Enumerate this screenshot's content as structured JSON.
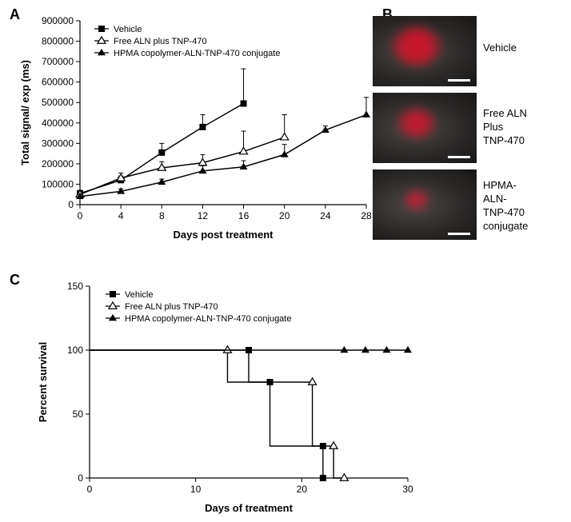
{
  "panelA": {
    "label": "A",
    "chart": {
      "type": "line",
      "xlabel": "Days post treatment",
      "ylabel": "Total signal/ exp (ms)",
      "label_fontsize": 13,
      "label_fontweight": "bold",
      "tick_fontsize": 12,
      "xlim": [
        0,
        28
      ],
      "ylim": [
        0,
        900000
      ],
      "xtick_step": 4,
      "ytick_step": 100000,
      "background_color": "#ffffff",
      "axis_color": "#000000",
      "series": [
        {
          "name": "Vehicle",
          "marker": "square-filled",
          "color": "#000000",
          "line_width": 1.5,
          "x": [
            0,
            4,
            8,
            12,
            16
          ],
          "y": [
            55000,
            120000,
            255000,
            380000,
            495000
          ],
          "err": [
            15000,
            20000,
            45000,
            60000,
            170000
          ]
        },
        {
          "name": "Free ALN plus TNP-470",
          "marker": "triangle-open",
          "color": "#000000",
          "line_width": 1.5,
          "x": [
            0,
            4,
            8,
            12,
            16,
            20
          ],
          "y": [
            50000,
            130000,
            180000,
            205000,
            260000,
            330000
          ],
          "err": [
            12000,
            25000,
            30000,
            40000,
            100000,
            110000
          ]
        },
        {
          "name": "HPMA copolymer-ALN-TNP-470 conjugate",
          "marker": "triangle-filled",
          "color": "#000000",
          "line_width": 1.5,
          "x": [
            0,
            4,
            8,
            12,
            16,
            20,
            24,
            28
          ],
          "y": [
            40000,
            65000,
            110000,
            165000,
            185000,
            245000,
            365000,
            440000
          ],
          "err": [
            10000,
            12000,
            15000,
            25000,
            30000,
            50000,
            20000,
            85000
          ]
        }
      ],
      "legend_position": "top-left"
    }
  },
  "panelB": {
    "label": "B",
    "images": [
      {
        "label_lines": [
          "Vehicle"
        ],
        "blob_w": 62,
        "blob_h": 48,
        "blob_color": "#d4132a",
        "scale_w": 28
      },
      {
        "label_lines": [
          "Free ALN",
          "Plus",
          "TNP-470"
        ],
        "blob_w": 48,
        "blob_h": 36,
        "blob_color": "#c81830",
        "scale_w": 28
      },
      {
        "label_lines": [
          "HPMA-",
          "ALN-",
          "TNP-470",
          "conjugate"
        ],
        "blob_w": 32,
        "blob_h": 24,
        "blob_color": "#c02038",
        "scale_w": 28
      }
    ]
  },
  "panelC": {
    "label": "C",
    "chart": {
      "type": "survival",
      "xlabel": "Days of treatment",
      "ylabel": "Percent survival",
      "label_fontsize": 13,
      "label_fontweight": "bold",
      "tick_fontsize": 12,
      "xlim": [
        0,
        30
      ],
      "ylim": [
        0,
        150
      ],
      "xtick_step": 10,
      "ytick_step": 50,
      "background_color": "#ffffff",
      "axis_color": "#000000",
      "series": [
        {
          "name": "Vehicle",
          "marker": "square-filled",
          "color": "#000000",
          "steps": [
            [
              0,
              100
            ],
            [
              15,
              100
            ],
            [
              15,
              75
            ],
            [
              17,
              75
            ],
            [
              17,
              25
            ],
            [
              22,
              25
            ],
            [
              22,
              0
            ]
          ],
          "marker_pts": [
            [
              15,
              100
            ],
            [
              17,
              75
            ],
            [
              22,
              25
            ],
            [
              22,
              0
            ]
          ]
        },
        {
          "name": "Free ALN plus TNP-470",
          "marker": "triangle-open",
          "color": "#000000",
          "steps": [
            [
              0,
              100
            ],
            [
              13,
              100
            ],
            [
              13,
              75
            ],
            [
              21,
              75
            ],
            [
              21,
              25
            ],
            [
              23,
              25
            ],
            [
              23,
              0
            ],
            [
              24,
              0
            ]
          ],
          "marker_pts": [
            [
              13,
              100
            ],
            [
              21,
              75
            ],
            [
              23,
              25
            ],
            [
              24,
              0
            ]
          ]
        },
        {
          "name": "HPMA copolymer-ALN-TNP-470 conjugate",
          "marker": "triangle-filled",
          "color": "#000000",
          "steps": [
            [
              0,
              100
            ],
            [
              30,
              100
            ]
          ],
          "marker_pts": [
            [
              24,
              100
            ],
            [
              26,
              100
            ],
            [
              28,
              100
            ],
            [
              30,
              100
            ]
          ]
        }
      ],
      "legend_position": "top-left"
    }
  }
}
